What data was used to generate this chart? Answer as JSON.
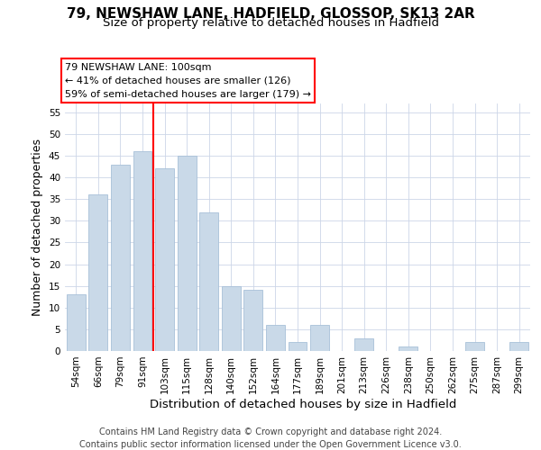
{
  "title_line1": "79, NEWSHAW LANE, HADFIELD, GLOSSOP, SK13 2AR",
  "title_line2": "Size of property relative to detached houses in Hadfield",
  "xlabel": "Distribution of detached houses by size in Hadfield",
  "ylabel": "Number of detached properties",
  "footer_line1": "Contains HM Land Registry data © Crown copyright and database right 2024.",
  "footer_line2": "Contains public sector information licensed under the Open Government Licence v3.0.",
  "categories": [
    "54sqm",
    "66sqm",
    "79sqm",
    "91sqm",
    "103sqm",
    "115sqm",
    "128sqm",
    "140sqm",
    "152sqm",
    "164sqm",
    "177sqm",
    "189sqm",
    "201sqm",
    "213sqm",
    "226sqm",
    "238sqm",
    "250sqm",
    "262sqm",
    "275sqm",
    "287sqm",
    "299sqm"
  ],
  "values": [
    13,
    36,
    43,
    46,
    42,
    45,
    32,
    15,
    14,
    6,
    2,
    6,
    0,
    3,
    0,
    1,
    0,
    0,
    2,
    0,
    2
  ],
  "bar_color": "#c9d9e8",
  "bar_edge_color": "#a8c0d8",
  "vline_color": "red",
  "vline_x_index": 3.5,
  "annotation_box_text": "79 NEWSHAW LANE: 100sqm\n← 41% of detached houses are smaller (126)\n59% of semi-detached houses are larger (179) →",
  "ylim": [
    0,
    57
  ],
  "yticks": [
    0,
    5,
    10,
    15,
    20,
    25,
    30,
    35,
    40,
    45,
    50,
    55
  ],
  "background_color": "#ffffff",
  "grid_color": "#ccd6e8",
  "title1_fontsize": 11,
  "title2_fontsize": 9.5,
  "ylabel_fontsize": 9,
  "xlabel_fontsize": 9.5,
  "tick_fontsize": 7.5,
  "annotation_fontsize": 8,
  "footer_fontsize": 7
}
